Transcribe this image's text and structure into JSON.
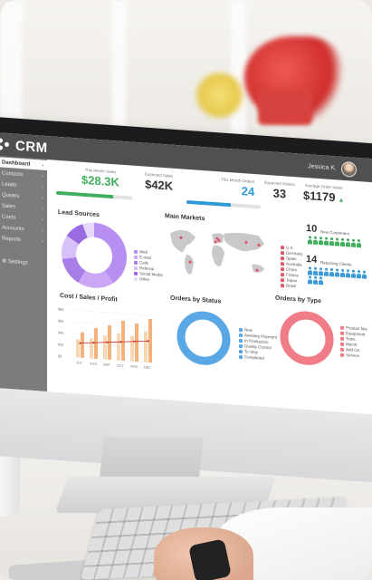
{
  "app": {
    "brand": "CRM",
    "user_name": "Jessica K."
  },
  "sidebar": {
    "items": [
      {
        "label": "Dashboard",
        "active": true
      },
      {
        "label": "Contacts"
      },
      {
        "label": "Leads"
      },
      {
        "label": "Quotes"
      },
      {
        "label": "Sales"
      },
      {
        "label": "Costs"
      },
      {
        "label": "Accounts"
      },
      {
        "label": "Reports"
      }
    ],
    "settings_label": "Settings"
  },
  "kpis": [
    {
      "label": "This Month Sales",
      "value": "$28.3K",
      "color": "#3fae5d",
      "progress": 0.75
    },
    {
      "label": "Expected Sales",
      "value": "$42K"
    },
    {
      "label": "This Month Orders",
      "value": "24",
      "color": "#2d9bd8",
      "progress": 0.6
    },
    {
      "label": "Expected Orders",
      "value": "33"
    },
    {
      "label": "Average Order Value",
      "value": "$1179"
    }
  ],
  "lead_sources": {
    "title": "Lead Sources",
    "legend": [
      "Web",
      "E-mail",
      "Calls",
      "Referral",
      "Social Media",
      "Other"
    ],
    "colors": [
      "#b78ff0",
      "#c9a7f5",
      "#a77de8",
      "#d8c0f8",
      "#9a6be0",
      "#e6d8fa"
    ],
    "values": [
      40,
      18,
      14,
      12,
      10,
      6
    ]
  },
  "main_markets": {
    "title": "Main Markets",
    "legend": [
      "U.S.",
      "Germany",
      "Spain",
      "Australia",
      "China",
      "France",
      "Japan",
      "Brazil"
    ],
    "marker_color": "#e0566f"
  },
  "customers": {
    "new_count": "10",
    "new_label": "New Customers",
    "new_color": "#3fae5d",
    "returning_count": "14",
    "returning_label": "Returning Clients",
    "returning_color": "#3a9ad9"
  },
  "cost_sales_profit": {
    "title": "Cost / Sales / Profit",
    "y_ticks": [
      "$8k",
      "$6k",
      "$4k",
      "$2k",
      "$0"
    ],
    "x_ticks": [
      "JUL",
      "AUG",
      "SEP",
      "OCT",
      "NOV",
      "DEC"
    ],
    "bar_colors": [
      "#f2b27a",
      "#f7d6b6"
    ],
    "line_color": "#c8332d"
  },
  "orders_by_status": {
    "title": "Orders by Status",
    "legend": [
      "New",
      "Awaiting Payment",
      "In Production",
      "Quality Control",
      "To Ship",
      "Completed"
    ],
    "color": "#5aa7e6"
  },
  "orders_by_type": {
    "title": "Orders by Type",
    "legend": [
      "Product Mix",
      "Equipment",
      "Tools",
      "Merch",
      "Add On",
      "Service"
    ],
    "color": "#f07c87"
  }
}
